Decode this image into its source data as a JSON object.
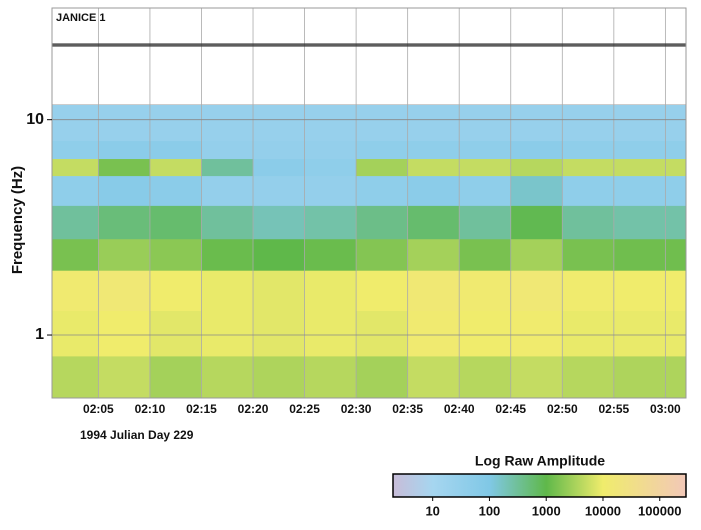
{
  "chart_data": {
    "type": "heatmap",
    "title": "JANICE 1",
    "ylabel": "Frequency (Hz)",
    "xlabel": "1994 Julian Day 229",
    "log_y": true,
    "ylim": [
      0.51,
      11.7
    ],
    "yticks": [
      10,
      1
    ],
    "xlim": [
      0.5,
      62
    ],
    "xticks": [
      {
        "value": 5,
        "label": "02:05"
      },
      {
        "value": 10,
        "label": "02:10"
      },
      {
        "value": 15,
        "label": "02:15"
      },
      {
        "value": 20,
        "label": "02:20"
      },
      {
        "value": 25,
        "label": "02:25"
      },
      {
        "value": 30,
        "label": "02:30"
      },
      {
        "value": 35,
        "label": "02:35"
      },
      {
        "value": 40,
        "label": "02:40"
      },
      {
        "value": 45,
        "label": "02:45"
      },
      {
        "value": 50,
        "label": "02:50"
      },
      {
        "value": 55,
        "label": "02:55"
      },
      {
        "value": 60,
        "label": "03:00"
      }
    ],
    "grid": true,
    "time_bins": [
      0.5,
      5,
      10,
      15,
      20,
      25,
      30,
      35,
      40,
      45,
      50,
      55,
      62
    ],
    "frequency_bins": [
      0.51,
      0.8,
      1.3,
      2,
      2.8,
      4,
      5.5,
      6.6,
      8,
      11.7
    ],
    "values": [
      [
        4000,
        5000,
        3000,
        4000,
        3500,
        4000,
        3000,
        5000,
        4000,
        5000,
        4000,
        3500
      ],
      [
        9000,
        10000,
        8000,
        9000,
        8000,
        9000,
        8000,
        12000,
        10000,
        11000,
        9000,
        9000
      ],
      [
        12000,
        15000,
        10000,
        9000,
        8000,
        9000,
        10000,
        14000,
        12000,
        15000,
        11000,
        10000
      ],
      [
        1500,
        2500,
        2000,
        1200,
        1000,
        1200,
        1800,
        3000,
        1500,
        3000,
        1500,
        1300
      ],
      [
        300,
        500,
        600,
        300,
        200,
        250,
        400,
        600,
        300,
        900,
        300,
        250
      ],
      [
        40,
        60,
        50,
        30,
        30,
        30,
        40,
        50,
        40,
        150,
        40,
        40
      ],
      [
        5000,
        1500,
        5000,
        300,
        50,
        40,
        3000,
        5000,
        5000,
        4000,
        5000,
        5000
      ],
      [
        40,
        50,
        50,
        30,
        30,
        30,
        40,
        40,
        40,
        50,
        40,
        40
      ],
      [
        25,
        25,
        25,
        25,
        25,
        25,
        25,
        25,
        25,
        25,
        25,
        25
      ]
    ],
    "colorbar": {
      "title": "Log Raw Amplitude",
      "log": true,
      "clim": [
        2,
        290000
      ],
      "ticks": [
        10,
        100,
        1000,
        10000,
        100000
      ],
      "colorscale": [
        {
          "value": 2,
          "color": "#c8bcd8"
        },
        {
          "value": 10,
          "color": "#a6d6f0"
        },
        {
          "value": 100,
          "color": "#80c8e6"
        },
        {
          "value": 1000,
          "color": "#5fb84a"
        },
        {
          "value": 10000,
          "color": "#f0ec6c"
        },
        {
          "value": 290000,
          "color": "#f2c8b8"
        }
      ]
    }
  }
}
